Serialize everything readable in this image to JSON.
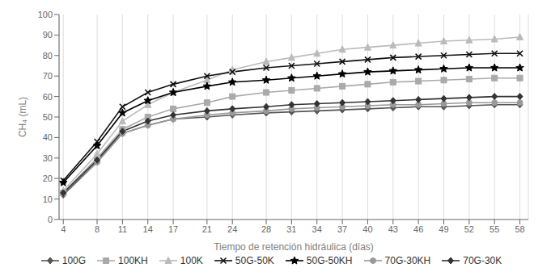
{
  "chart_data": {
    "type": "line",
    "xlabel": "Tiempo de retención hidráulica (días)",
    "ylabel": "CH₄ (mL)",
    "x": [
      4,
      8,
      11,
      14,
      17,
      21,
      24,
      28,
      31,
      34,
      37,
      40,
      43,
      46,
      49,
      52,
      55,
      58
    ],
    "series": [
      {
        "name": "100G",
        "color": "#555555",
        "marker": "diamond",
        "values": [
          12,
          28,
          42,
          46,
          49,
          50,
          51,
          52,
          52.5,
          53,
          53.5,
          54,
          54.5,
          55,
          55,
          55.5,
          56,
          56
        ]
      },
      {
        "name": "100KH",
        "color": "#aaaaaa",
        "marker": "square",
        "values": [
          13,
          30,
          44,
          50,
          54,
          57,
          60,
          62,
          63,
          64,
          65,
          66,
          67,
          67.5,
          68,
          68.5,
          69,
          69
        ]
      },
      {
        "name": "100K",
        "color": "#bbbbbb",
        "marker": "triangle",
        "values": [
          14,
          32,
          48,
          56,
          62,
          68,
          73,
          77,
          79,
          81,
          83,
          84,
          85,
          86,
          87,
          87.5,
          88,
          89
        ]
      },
      {
        "name": "50G-50K",
        "color": "#111111",
        "marker": "x",
        "values": [
          19,
          38,
          55,
          62,
          66,
          70,
          72,
          74,
          75,
          76,
          77,
          78,
          79,
          79.5,
          80,
          80.5,
          81,
          81
        ]
      },
      {
        "name": "50G-50KH",
        "color": "#000000",
        "marker": "star",
        "values": [
          18,
          36,
          52,
          58,
          62,
          65,
          67,
          68,
          69,
          70,
          71,
          72,
          72.5,
          73,
          73.5,
          74,
          74,
          74
        ]
      },
      {
        "name": "70G-30KH",
        "color": "#999999",
        "marker": "circle",
        "values": [
          13,
          28,
          42,
          46,
          49,
          51,
          52,
          53,
          54,
          54.5,
          55,
          55.5,
          56,
          56,
          56.5,
          57,
          57,
          57
        ]
      },
      {
        "name": "70G-30K",
        "color": "#333333",
        "marker": "diamond",
        "values": [
          13,
          29,
          43,
          48,
          51,
          53,
          54,
          55,
          56,
          56.5,
          57,
          57.5,
          58,
          58.5,
          59,
          59.5,
          60,
          60
        ]
      }
    ],
    "xlim": [
      3.5,
      59
    ],
    "ylim": [
      0,
      100
    ],
    "xticks": [
      4,
      8,
      11,
      14,
      17,
      21,
      24,
      28,
      31,
      34,
      37,
      40,
      43,
      46,
      49,
      52,
      55,
      58
    ],
    "yticks": [
      0,
      10,
      20,
      30,
      40,
      50,
      60,
      70,
      80,
      90,
      100
    ],
    "grid": "x",
    "legend": "bottom"
  }
}
